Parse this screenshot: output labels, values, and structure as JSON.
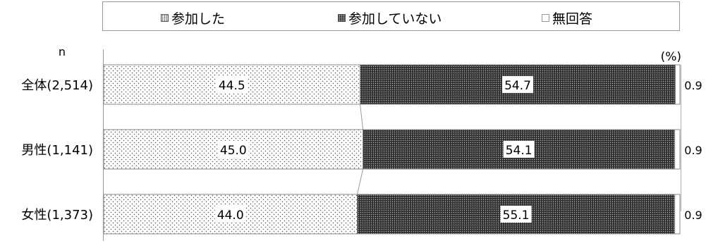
{
  "legend": {
    "items": [
      {
        "label": "参加した",
        "pattern": "dots-light"
      },
      {
        "label": "参加していない",
        "pattern": "dots-dark"
      },
      {
        "label": "無回答",
        "pattern": "none"
      }
    ]
  },
  "chart_data": {
    "type": "bar",
    "orientation": "horizontal",
    "stacked": true,
    "categories": [
      "全体(2,514)",
      "男性(1,141)",
      "女性(1,373)"
    ],
    "n_label": "n",
    "unit_label": "(%)",
    "xlim": [
      0,
      100
    ],
    "series": [
      {
        "name": "参加した",
        "values": [
          44.5,
          45.0,
          44.0
        ]
      },
      {
        "name": "参加していない",
        "values": [
          54.7,
          54.1,
          55.1
        ]
      },
      {
        "name": "無回答",
        "values": [
          0.9,
          0.9,
          0.9
        ]
      }
    ],
    "value_labels": {
      "参加した": [
        "44.5",
        "45.0",
        "44.0"
      ],
      "参加していない": [
        "54.7",
        "54.1",
        "55.1"
      ],
      "無回答": [
        "0.9",
        "0.9",
        "0.9"
      ]
    },
    "colors": {
      "joined_bg": "#ffffff",
      "not_joined_bg": "#333333",
      "no_answer_bg": "#ffffff",
      "border": "#888888"
    }
  }
}
